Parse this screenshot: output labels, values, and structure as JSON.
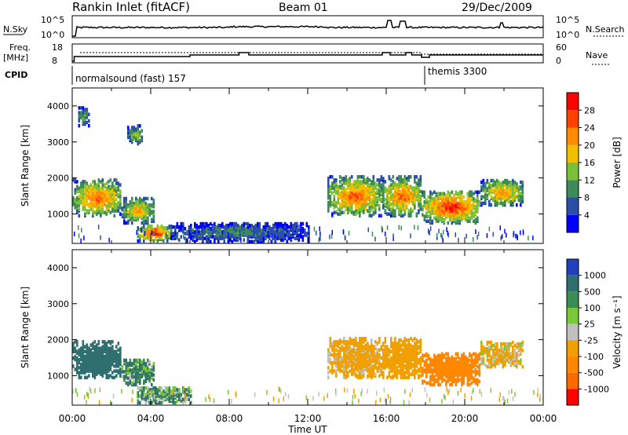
{
  "header": {
    "station": "Rankin Inlet (fitACF)",
    "beam": "Beam 01",
    "date": "29/Dec/2009"
  },
  "noise_panel": {
    "left_label": "N.Sky",
    "left_ticks": [
      "10^5",
      "10^0"
    ],
    "right_ticks": [
      "10^5",
      "10^0"
    ],
    "right_label": "N.Search"
  },
  "freq_panel": {
    "left_label_1": "Freq.",
    "left_label_2": "[MHz]",
    "left_ticks": [
      "18",
      "8"
    ],
    "right_ticks": [
      "60",
      "0"
    ],
    "right_label": "Nave"
  },
  "cpid_panel": {
    "label": "CPID",
    "mode1": "normalsound (fast) 157",
    "mode2": "themis 3300"
  },
  "axes": {
    "ylabel": "Slant Range [km]",
    "yticks": [
      "1000",
      "2000",
      "3000",
      "4000"
    ],
    "xlabel": "Time UT",
    "xticks": [
      "00:00",
      "04:00",
      "08:00",
      "12:00",
      "16:00",
      "20:00",
      "00:00"
    ]
  },
  "colors": {
    "power": [
      "#0000ff",
      "#2b4fa8",
      "#3f8a5a",
      "#7cc03a",
      "#f0c000",
      "#ff8c00",
      "#ff4000",
      "#ff0000"
    ],
    "velocity": [
      "#2040c0",
      "#2f6f70",
      "#3c8c55",
      "#78c83a",
      "#c0c0c0",
      "#f0a000",
      "#ff8800",
      "#ff6a00",
      "#ff0000"
    ],
    "ground_scatter": "#a0a0a0"
  },
  "chart_data": [
    {
      "type": "heatmap",
      "title": "Power [dB]",
      "xlabel": "Time UT",
      "ylabel": "Slant Range [km]",
      "xlim": [
        0,
        24
      ],
      "ylim": [
        180,
        4500
      ],
      "colorbar": {
        "label": "Power [dB]",
        "ticks": [
          "4",
          "8",
          "12",
          "16",
          "20",
          "24",
          "28"
        ],
        "range": [
          0,
          32
        ]
      },
      "scatter_regions": [
        {
          "t": [
            0.0,
            2.5
          ],
          "r": [
            900,
            1900
          ],
          "peak_dB": 26
        },
        {
          "t": [
            2.5,
            4.2
          ],
          "r": [
            700,
            1400
          ],
          "peak_dB": 22
        },
        {
          "t": [
            3.3,
            5.0
          ],
          "r": [
            200,
            650
          ],
          "peak_dB": 30
        },
        {
          "t": [
            0.3,
            0.8
          ],
          "r": [
            3400,
            3900
          ],
          "peak_dB": 14
        },
        {
          "t": [
            2.8,
            3.6
          ],
          "r": [
            2900,
            3400
          ],
          "peak_dB": 16
        },
        {
          "t": [
            13.0,
            15.8
          ],
          "r": [
            900,
            2000
          ],
          "peak_dB": 26
        },
        {
          "t": [
            15.8,
            17.8
          ],
          "r": [
            900,
            2000
          ],
          "peak_dB": 26
        },
        {
          "t": [
            17.8,
            20.8
          ],
          "r": [
            700,
            1600
          ],
          "peak_dB": 30
        },
        {
          "t": [
            20.8,
            23.0
          ],
          "r": [
            1200,
            1900
          ],
          "peak_dB": 24
        },
        {
          "t": [
            5.0,
            12.0
          ],
          "r": [
            180,
            700
          ],
          "peak_dB": 10
        }
      ]
    },
    {
      "type": "heatmap",
      "title": "Velocity [m s^-1]",
      "xlabel": "Time UT",
      "ylabel": "Slant Range [km]",
      "xlim": [
        0,
        24
      ],
      "ylim": [
        180,
        4500
      ],
      "colorbar": {
        "label": "Velocity [m s⁻¹]",
        "ticks": [
          "1000",
          "500",
          "100",
          "25",
          "-25",
          "-100",
          "-500",
          "-1000"
        ],
        "range": [
          -1000,
          1000
        ]
      },
      "scatter_regions": [
        {
          "t": [
            0.0,
            2.5
          ],
          "r": [
            900,
            1900
          ],
          "velocity": 300
        },
        {
          "t": [
            2.5,
            4.2
          ],
          "r": [
            700,
            1400
          ],
          "velocity": 100
        },
        {
          "t": [
            3.3,
            6.0
          ],
          "r": [
            200,
            650
          ],
          "velocity": 50
        },
        {
          "t": [
            13.0,
            15.8
          ],
          "r": [
            900,
            2000
          ],
          "velocity": -200
        },
        {
          "t": [
            15.8,
            17.8
          ],
          "r": [
            900,
            2000
          ],
          "velocity": -300
        },
        {
          "t": [
            17.8,
            20.8
          ],
          "r": [
            700,
            1600
          ],
          "velocity": -700
        },
        {
          "t": [
            20.8,
            23.0
          ],
          "r": [
            1200,
            1900
          ],
          "velocity": -150
        }
      ]
    }
  ]
}
